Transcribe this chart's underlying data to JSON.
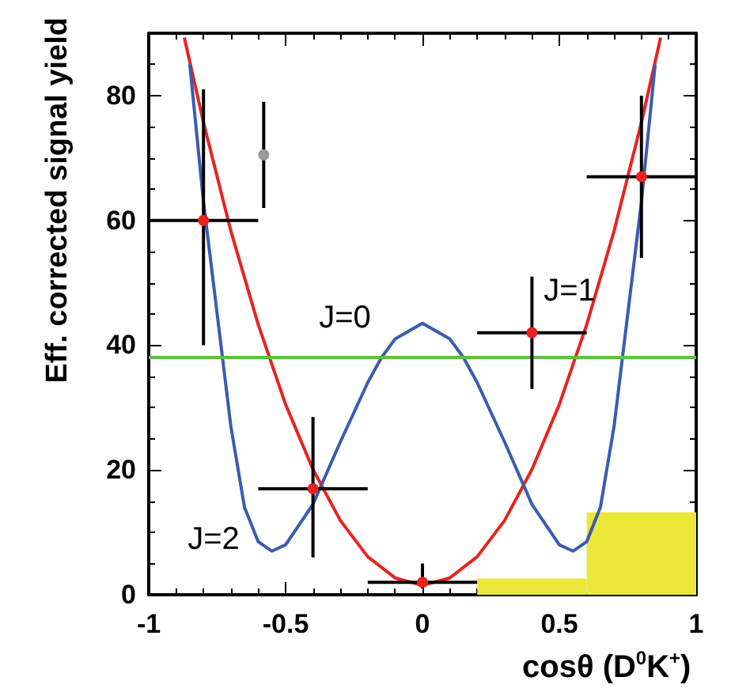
{
  "chart_data": {
    "type": "scatter",
    "xlabel": "cosθ (D$^{0}$K$^{+}$)",
    "ylabel": "Eff. corrected signal yield",
    "xlim": [
      -1,
      1
    ],
    "xticks": [
      -1,
      -0.5,
      0,
      0.5,
      1
    ],
    "ylim": [
      0,
      90
    ],
    "yticks": [
      0,
      20,
      40,
      60,
      80
    ],
    "series": [
      {
        "type": "histogram",
        "color": "#ece83a",
        "bins": [
          0.2,
          0.6,
          1.0
        ],
        "values": [
          2.6,
          13.2
        ]
      },
      {
        "type": "line",
        "color": "#e8231f",
        "x": [
          -0.87,
          -0.8,
          -0.7,
          -0.6,
          -0.5,
          -0.4,
          -0.3,
          -0.2,
          -0.1,
          0,
          0.1,
          0.2,
          0.3,
          0.4,
          0.5,
          0.6,
          0.7,
          0.8,
          0.87
        ],
        "values": [
          89.3,
          75.7,
          58.3,
          43.3,
          30.5,
          20.1,
          11.9,
          6.1,
          2.7,
          1.5,
          2.7,
          6.1,
          11.9,
          20.1,
          30.5,
          43.3,
          58.3,
          75.7,
          89.3
        ]
      },
      {
        "type": "line",
        "color": "#3a5bb0",
        "x": [
          -0.85,
          -0.8,
          -0.75,
          -0.7,
          -0.65,
          -0.6,
          -0.55,
          -0.5,
          -0.4,
          -0.3,
          -0.2,
          -0.15,
          -0.1,
          0,
          0.1,
          0.15,
          0.2,
          0.3,
          0.4,
          0.5,
          0.55,
          0.6,
          0.65,
          0.7,
          0.75,
          0.8,
          0.85
        ],
        "values": [
          85,
          63,
          45,
          27,
          14,
          8.5,
          7,
          8,
          14.5,
          24.5,
          34,
          38,
          41,
          43.5,
          41,
          38,
          34,
          24.5,
          14.5,
          8,
          7,
          8.5,
          14,
          27,
          45,
          63,
          85
        ]
      },
      {
        "color": "#999999",
        "marker": "circle",
        "x": [
          -0.58
        ],
        "values": [
          70.5
        ],
        "errors": [
          [
            62,
            79
          ]
        ]
      },
      {
        "color": "#e8231f",
        "marker": "circle",
        "x": [
          -0.8,
          -0.4,
          0,
          0.4,
          0.8
        ],
        "values": [
          60,
          17,
          2,
          42,
          67
        ],
        "errors": [
          [
            40,
            81
          ],
          [
            6,
            28.5
          ],
          [
            1,
            5
          ],
          [
            33,
            51
          ],
          [
            54,
            80
          ]
        ],
        "xerrors": [
          0.2,
          0.2,
          0.2,
          0.2,
          0.2
        ]
      }
    ],
    "ref_lines": [
      {
        "axis": "y",
        "value": 38,
        "color": "#5cc040"
      }
    ],
    "annotations": [
      "J=0",
      "J=1",
      "J=2"
    ]
  }
}
